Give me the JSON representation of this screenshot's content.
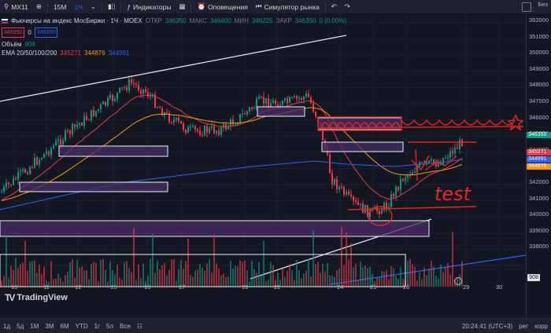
{
  "toolbar": {
    "symbol": "MX11",
    "tf_15m": "15M",
    "tf_1h": "1Ч",
    "indicators_label": "Индикаторы",
    "alerts_label": "Оповещения",
    "replay_label": "Симулятор рынка",
    "right_label": "Без"
  },
  "legend": {
    "title": "Фьючерсы на индекс МосБиржи · 1Ч · MOEX",
    "open_label": "ОТКР",
    "open_value": "346350",
    "high_label": "МАКС",
    "high_value": "346400",
    "low_label": "МИН",
    "low_value": "346225",
    "close_label": "ЗАКР",
    "close_value": "346350",
    "change": "0 (0.00%)",
    "bid": "346350",
    "spread": "0",
    "ask": "346350",
    "volume_label": "Объём",
    "volume_value": "908",
    "ema_label": "EMA 20/50/100/200",
    "ema20": "345271",
    "ema50": "344876",
    "ema100": "344991"
  },
  "price_axis": {
    "labels": [
      "352000",
      "351000",
      "350000",
      "349000",
      "348000",
      "347000",
      "346000",
      "345000",
      "344000",
      "343000",
      "342000",
      "341000",
      "340000",
      "339000",
      "338000"
    ],
    "tag_current": "346350",
    "tag_ema20": "345271",
    "tag_ema100": "344991",
    "tag_ema50": "344876",
    "tag_volume": "908"
  },
  "time_axis": {
    "labels": [
      "10",
      "11",
      "12",
      "15",
      "16",
      "17",
      "19",
      "22",
      "24",
      "25",
      "26",
      "29",
      "30"
    ]
  },
  "annotation_text": "test",
  "branding": "TradingView",
  "bottombar": {
    "ranges": [
      "1д",
      "5д",
      "1М",
      "3М",
      "6М",
      "YTD",
      "1г",
      "5л",
      "Все"
    ],
    "clock": "20:24:41 (UTC+3)",
    "scale_mode": "рег",
    "corr": "корр"
  },
  "colors": {
    "background": "#131722",
    "up": "#089981",
    "down": "#f23645",
    "ema20": "#f23645",
    "ema50": "#ff9800",
    "ema100": "#2962ff",
    "zone_fill": "#4a2e6a",
    "drawing": "#e8271a"
  }
}
